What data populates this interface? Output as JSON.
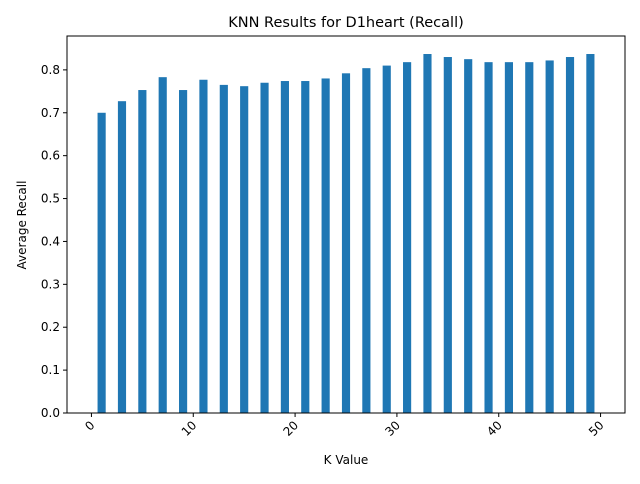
{
  "chart_data": {
    "type": "bar",
    "title": "KNN Results for D1heart (Recall)",
    "xlabel": "K Value",
    "ylabel": "Average Recall",
    "x": [
      1,
      3,
      5,
      7,
      9,
      11,
      13,
      15,
      17,
      19,
      21,
      23,
      25,
      27,
      29,
      31,
      33,
      35,
      37,
      39,
      41,
      43,
      45,
      47,
      49
    ],
    "values": [
      0.7,
      0.727,
      0.753,
      0.783,
      0.753,
      0.777,
      0.765,
      0.762,
      0.77,
      0.774,
      0.774,
      0.78,
      0.792,
      0.804,
      0.81,
      0.818,
      0.837,
      0.83,
      0.825,
      0.818,
      0.818,
      0.818,
      0.822,
      0.83,
      0.837
    ],
    "xlim": [
      -2.4,
      52.4
    ],
    "ylim": [
      0,
      0.879
    ],
    "xticks": [
      0,
      10,
      20,
      30,
      40,
      50
    ],
    "yticks": [
      0.0,
      0.1,
      0.2,
      0.3,
      0.4,
      0.5,
      0.6,
      0.7,
      0.8
    ],
    "xtick_labels": [
      "0",
      "10",
      "20",
      "30",
      "40",
      "50"
    ],
    "ytick_labels": [
      "0.0",
      "0.1",
      "0.2",
      "0.3",
      "0.4",
      "0.5",
      "0.6",
      "0.7",
      "0.8"
    ],
    "bar_width_units": 0.8,
    "grid": false,
    "colors": {
      "bar": "#1f77b4",
      "axis": "#000000",
      "background": "#ffffff"
    }
  }
}
